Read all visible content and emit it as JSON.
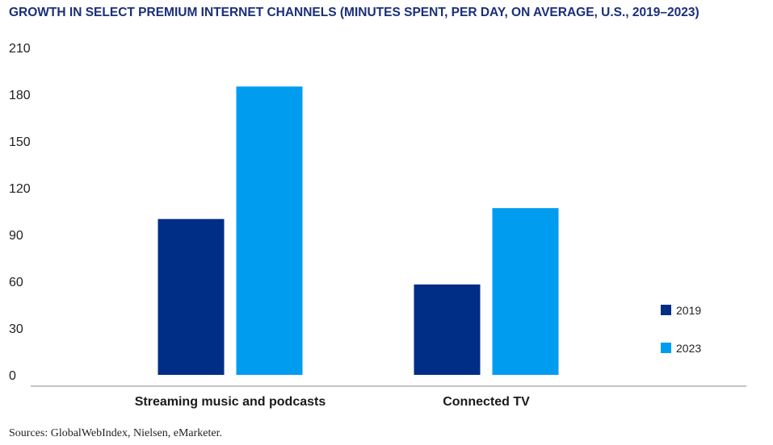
{
  "chart_data": {
    "type": "bar",
    "title": "GROWTH IN SELECT PREMIUM INTERNET CHANNELS (MINUTES SPENT, PER DAY, ON AVERAGE, U.S., 2019–2023)",
    "categories": [
      "Streaming music and podcasts",
      "Connected TV"
    ],
    "series": [
      {
        "name": "2019",
        "values": [
          100,
          58
        ],
        "color": "#002d85"
      },
      {
        "name": "2023",
        "values": [
          185,
          107
        ],
        "color": "#009cf0"
      }
    ],
    "ylim": [
      0,
      210
    ],
    "yticks": [
      "0",
      "30",
      "60",
      "90",
      "120",
      "150",
      "180",
      "210"
    ],
    "xlabel": "",
    "ylabel": "",
    "grid": false,
    "legend": "right"
  },
  "source": "Sources: GlobalWebIndex, Nielsen, eMarketer."
}
